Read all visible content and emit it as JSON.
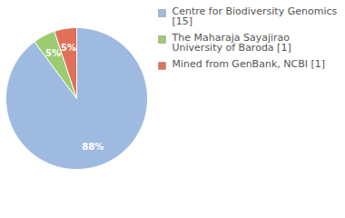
{
  "chart_data": {
    "type": "pie",
    "categories": [
      "Centre for Biodiversity Genomics [15]",
      "The Maharaja Sayajirao University of Baroda [1]",
      "Mined from GenBank, NCBI [1]"
    ],
    "values": [
      88,
      5,
      5
    ],
    "value_labels": [
      "88%",
      "5%",
      "5%"
    ],
    "colors": [
      "#9fbae0",
      "#9ccc72",
      "#e07058"
    ],
    "data_labels": true,
    "legend": "top-right"
  }
}
